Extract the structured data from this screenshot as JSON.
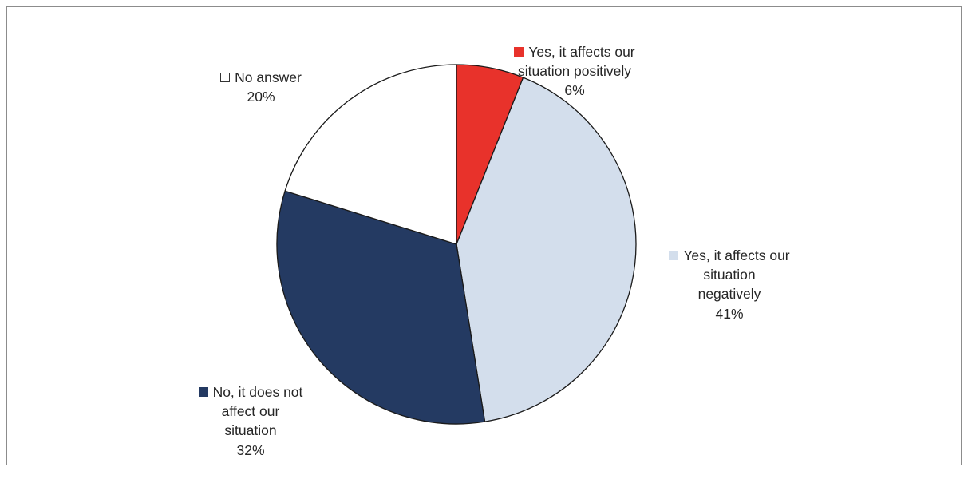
{
  "chart_data": {
    "type": "pie",
    "title": "",
    "start_angle_deg": 0,
    "direction": "clockwise",
    "slices": [
      {
        "name": "Yes, it affects our situation positively",
        "value": 6,
        "value_label": "6%",
        "color": "#e8322b"
      },
      {
        "name": "Yes, it affects our situation negatively",
        "value": 41,
        "value_label": "41%",
        "color": "#d3deec"
      },
      {
        "name": "No, it does not affect our situation",
        "value": 32,
        "value_label": "32%",
        "color": "#243a62"
      },
      {
        "name": "No answer",
        "value": 20,
        "value_label": "20%",
        "color": "#ffffff"
      }
    ],
    "legend": "inline labels with color markers",
    "border_color": "#1a1a1a"
  }
}
